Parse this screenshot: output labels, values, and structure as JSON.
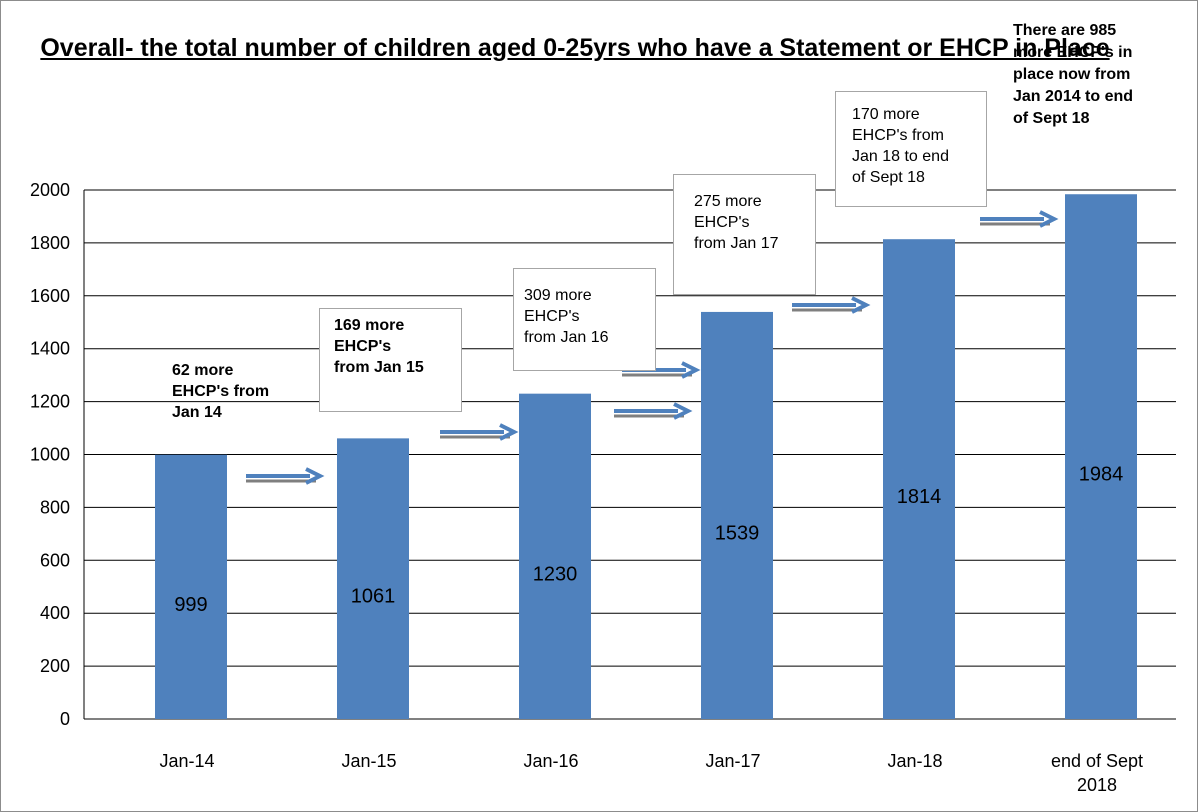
{
  "chart_data": {
    "type": "bar",
    "title": "Overall- the total number of children aged 0-25yrs who have a  Statement or EHCP in Place",
    "categories": [
      "Jan-14",
      "Jan-15",
      "Jan-16",
      "Jan-17",
      "Jan-18",
      "end of Sept 2018"
    ],
    "values": [
      999,
      1061,
      1230,
      1539,
      1814,
      1984
    ],
    "data_labels": [
      "999",
      "1061",
      "1230",
      "1539",
      "1814",
      "1984"
    ],
    "ylim": [
      0,
      2000
    ],
    "yticks": [
      "0",
      "200",
      "400",
      "600",
      "800",
      "1000",
      "1200",
      "1400",
      "1600",
      "1800",
      "2000"
    ],
    "grid": true,
    "bar_color": "#4f81bd",
    "annotations": [
      {
        "text": "62 more\nEHCP's from\nJan 14",
        "bold": true,
        "boxed": false
      },
      {
        "text": "169  more\nEHCP's\nfrom Jan 15",
        "bold": true,
        "boxed": true
      },
      {
        "text": "309 more\nEHCP's\nfrom Jan 16",
        "bold": false,
        "boxed": true
      },
      {
        "text": "275 more\nEHCP's\nfrom Jan 17",
        "bold": false,
        "boxed": true
      },
      {
        "text": "170 more\nEHCP's from\nJan 18 to end\nof  Sept 18",
        "bold": false,
        "boxed": true
      },
      {
        "text": "There are 985\nmore EHCP's  in\nplace now from\nJan 2014 to end\nof Sept 18",
        "bold": true,
        "boxed": false
      }
    ]
  }
}
